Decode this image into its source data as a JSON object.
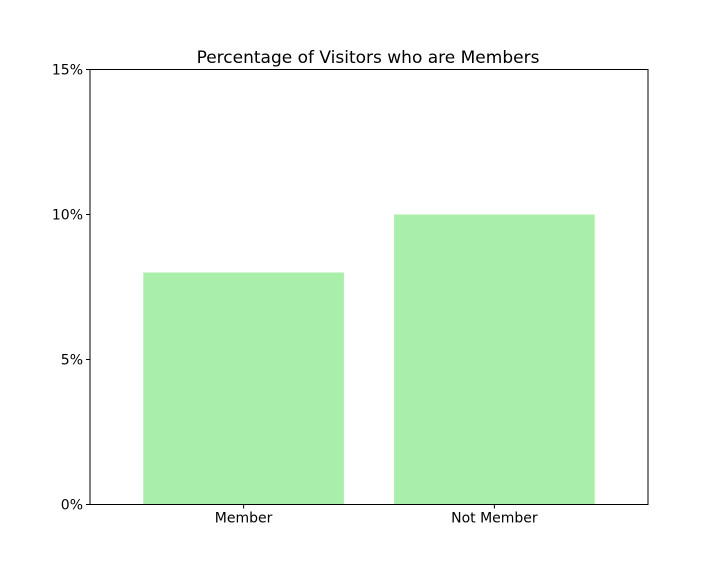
{
  "chart_data": {
    "type": "bar",
    "title": "Percentage of Visitors who are Members",
    "xlabel": "",
    "ylabel": "",
    "categories": [
      "Member",
      "Not Member"
    ],
    "values": [
      8,
      10
    ],
    "ylim": [
      0,
      15
    ],
    "yticks": [
      0,
      5,
      10,
      15
    ],
    "ytick_labels": [
      "0%",
      "5%",
      "10%",
      "15%"
    ],
    "bar_color": "#a9eea9",
    "grid": false,
    "legend": "none"
  }
}
